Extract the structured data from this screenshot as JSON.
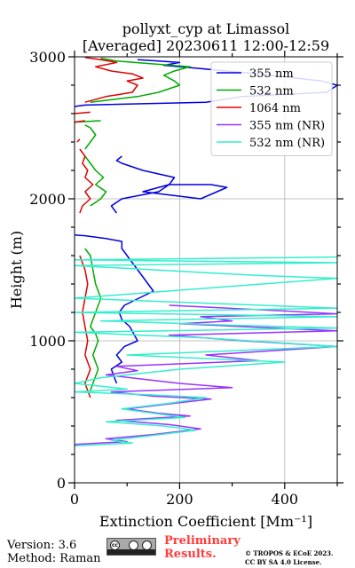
{
  "chart_data": {
    "type": "line",
    "title": "pollyxt_cyp at Limassol",
    "subtitle": "[Averaged] 20230611 12:00-12:59",
    "xlabel": "Extinction Coefficient [Mm⁻¹]",
    "ylabel": "Height (m)",
    "xlim": [
      0,
      500
    ],
    "ylim": [
      0,
      3000
    ],
    "xticks": [
      "0",
      "200",
      "400"
    ],
    "yticks": [
      "0",
      "1000",
      "2000",
      "3000"
    ],
    "grid": true,
    "legend_position": "top-right",
    "series": [
      {
        "name": "355 nm",
        "color": "#0000dd",
        "x": [
          80,
          75,
          70,
          90,
          80,
          95,
          120,
          105,
          90,
          85,
          95,
          150,
          130,
          110,
          100,
          90,
          90,
          60,
          20,
          0,
          null,
          80,
          70,
          90,
          160,
          180,
          260,
          290,
          240,
          130,
          180,
          190,
          130,
          90,
          80,
          90,
          null,
          0,
          20,
          250,
          320,
          480,
          500,
          470,
          350,
          230,
          170,
          200,
          160,
          120
        ],
        "y": [
          700,
          750,
          800,
          850,
          900,
          960,
          1000,
          1100,
          1150,
          1200,
          1250,
          1350,
          1450,
          1550,
          1600,
          1650,
          1700,
          1720,
          1740,
          1745,
          null,
          1900,
          1950,
          2000,
          2050,
          2100,
          2100,
          2080,
          2000,
          2050,
          2100,
          2150,
          2200,
          2250,
          2270,
          2300,
          null,
          2650,
          2660,
          2680,
          2720,
          2750,
          2800,
          2830,
          2880,
          2920,
          2940,
          2960,
          2970,
          2980
        ]
      },
      {
        "name": "532 nm",
        "color": "#00aa00",
        "x": [
          30,
          35,
          40,
          45,
          40,
          35,
          40,
          45,
          40,
          30,
          35,
          40,
          50,
          40,
          35,
          30,
          20,
          null,
          30,
          50,
          60,
          40,
          55,
          40,
          30,
          20,
          null,
          20,
          30,
          40,
          30,
          20,
          null,
          0,
          50,
          null,
          30,
          120,
          160,
          200,
          190,
          170,
          190,
          220,
          150,
          80,
          50
        ],
        "y": [
          650,
          700,
          750,
          800,
          850,
          900,
          950,
          1000,
          1050,
          1100,
          1150,
          1200,
          1300,
          1400,
          1500,
          1600,
          1650,
          null,
          1950,
          2000,
          2050,
          2100,
          2150,
          2200,
          2250,
          2300,
          null,
          2350,
          2400,
          2450,
          2500,
          2520,
          null,
          2540,
          2550,
          null,
          2680,
          2720,
          2750,
          2800,
          2830,
          2870,
          2900,
          2930,
          2950,
          2970,
          2990
        ]
      },
      {
        "name": "1064 nm",
        "color": "#dd0000",
        "x": [
          30,
          25,
          20,
          25,
          30,
          25,
          20,
          25,
          20,
          15,
          20,
          25,
          20,
          10,
          null,
          10,
          15,
          30,
          20,
          35,
          20,
          25,
          15,
          20,
          10,
          null,
          0,
          20,
          null,
          5,
          10,
          null,
          0,
          30,
          null,
          20,
          60,
          110,
          120,
          100,
          130,
          110,
          70,
          40,
          80,
          50,
          20
        ],
        "y": [
          600,
          650,
          700,
          750,
          800,
          850,
          900,
          1000,
          1100,
          1200,
          1300,
          1400,
          1500,
          1600,
          null,
          1900,
          1950,
          2000,
          2050,
          2100,
          2150,
          2200,
          2250,
          2300,
          2350,
          null,
          2540,
          2550,
          null,
          2400,
          2420,
          null,
          2600,
          2610,
          null,
          2680,
          2720,
          2750,
          2800,
          2830,
          2850,
          2880,
          2900,
          2930,
          2960,
          2980,
          2995
        ]
      },
      {
        "name": "355 nm (NR)",
        "color": "#9933ff",
        "x": [
          0,
          100,
          60,
          150,
          240,
          180,
          80,
          220,
          160,
          100,
          190,
          260,
          150,
          70,
          300,
          200,
          130,
          60,
          120,
          80,
          350,
          250,
          500,
          320,
          180,
          500,
          380,
          200,
          300,
          240,
          500,
          400,
          180
        ],
        "y": [
          270,
          290,
          310,
          340,
          380,
          410,
          440,
          470,
          490,
          520,
          560,
          590,
          610,
          640,
          670,
          700,
          730,
          760,
          790,
          820,
          860,
          900,
          960,
          1000,
          1040,
          1070,
          1090,
          1120,
          1140,
          1170,
          1190,
          1210,
          1250
        ]
      },
      {
        "name": "532 nm (NR)",
        "color": "#33eecc",
        "x": [
          0,
          110,
          70,
          140,
          230,
          170,
          60,
          210,
          150,
          90,
          180,
          250,
          140,
          0,
          100,
          0,
          50,
          200,
          400,
          100,
          500,
          250,
          0,
          500,
          300,
          50,
          500,
          0,
          500,
          0,
          500,
          350,
          0,
          500,
          0,
          500
        ],
        "y": [
          260,
          280,
          300,
          330,
          370,
          400,
          430,
          460,
          490,
          520,
          560,
          600,
          620,
          640,
          660,
          700,
          740,
          800,
          850,
          900,
          960,
          1020,
          1060,
          1090,
          1110,
          1140,
          1170,
          1200,
          1230,
          1300,
          1440,
          1460,
          1530,
          1550,
          1570,
          1590
        ]
      }
    ]
  },
  "footer": {
    "version": "Version: 3.6",
    "method": "Method: Raman",
    "preliminary_line1": "Preliminary",
    "preliminary_line2": "Results.",
    "license_line1": "© TROPOS & ECoE 2023.",
    "license_line2": "CC BY SA 4.0 License."
  },
  "logo": {
    "badge": "cc-by-sa-icon",
    "text": "cc"
  }
}
